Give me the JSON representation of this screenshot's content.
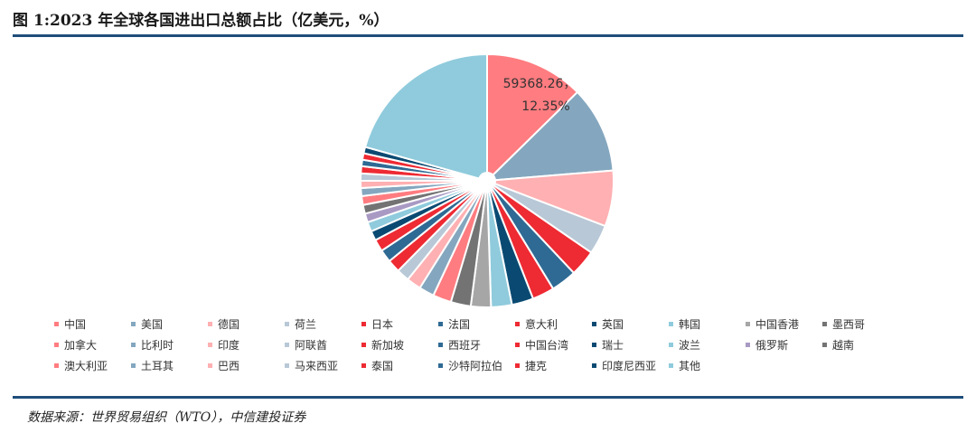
{
  "header": {
    "title": "图 1:2023 年全球各国进出口总额占比（亿美元，%）"
  },
  "footer": {
    "source": "数据来源：世界贸易组织（WTO），中信建投证券"
  },
  "chart_data": {
    "type": "pie",
    "title": "图 1:2023 年全球各国进出口总额占比（亿美元，%）",
    "slice_label": {
      "category": "中国",
      "value_text": "59368.26，",
      "percent_text": "12.35%"
    },
    "legend_position": "bottom",
    "categories": [
      "中国",
      "美国",
      "德国",
      "荷兰",
      "日本",
      "法国",
      "意大利",
      "英国",
      "韩国",
      "中国香港",
      "墨西哥",
      "加拿大",
      "比利时",
      "印度",
      "阿联酋",
      "新加坡",
      "西班牙",
      "中国台湾",
      "瑞士",
      "波兰",
      "俄罗斯",
      "越南",
      "澳大利亚",
      "土耳其",
      "巴西",
      "马来西亚",
      "泰国",
      "沙特阿拉伯",
      "捷克",
      "印度尼西亚",
      "其他"
    ],
    "values": [
      12.35,
      10.79,
      6.96,
      3.69,
      3.3,
      3.2,
      2.75,
      2.7,
      2.6,
      2.5,
      2.5,
      2.3,
      1.9,
      1.8,
      1.6,
      1.6,
      1.6,
      1.5,
      1.2,
      1.2,
      1.1,
      1.1,
      1.1,
      1.0,
      0.9,
      0.9,
      0.9,
      0.8,
      0.8,
      0.8,
      20.2
    ],
    "colors": [
      "#ff7c80",
      "#84a7bf",
      "#ffb0b2",
      "#b8c8d7",
      "#ee2a33",
      "#2e6a94",
      "#ee2a33",
      "#0a4a72",
      "#8fcbdc",
      "#a6a6a6",
      "#737373",
      "#ff7c80",
      "#84a7bf",
      "#ffb0b2",
      "#b8c8d7",
      "#ee2a33",
      "#2e6a94",
      "#ee2a33",
      "#0a4a72",
      "#8fcbdc",
      "#a99ac4",
      "#737373",
      "#ff7c80",
      "#84a7bf",
      "#ffb0b2",
      "#b8c8d7",
      "#ee2a33",
      "#2e6a94",
      "#ee2a33",
      "#0a4a72",
      "#8fcbdc"
    ],
    "legend_colors": [
      "#ff7c80",
      "#84a7bf",
      "#ffb0b2",
      "#b8c8d7",
      "#ee2a33",
      "#2e6a94",
      "#ee2a33",
      "#0a4a72",
      "#8fcbdc",
      "#a6a6a6",
      "#737373",
      "#ff7c80",
      "#84a7bf",
      "#ffb0b2",
      "#b8c8d7",
      "#ee2a33",
      "#2e6a94",
      "#ee2a33",
      "#0a4a72",
      "#8fcbdc",
      "#a99ac4",
      "#737373",
      "#ff7c80",
      "#84a7bf",
      "#ffb0b2",
      "#b8c8d7",
      "#ee2a33",
      "#2e6a94",
      "#ee2a33",
      "#0a4a72",
      "#8fcbdc"
    ]
  }
}
